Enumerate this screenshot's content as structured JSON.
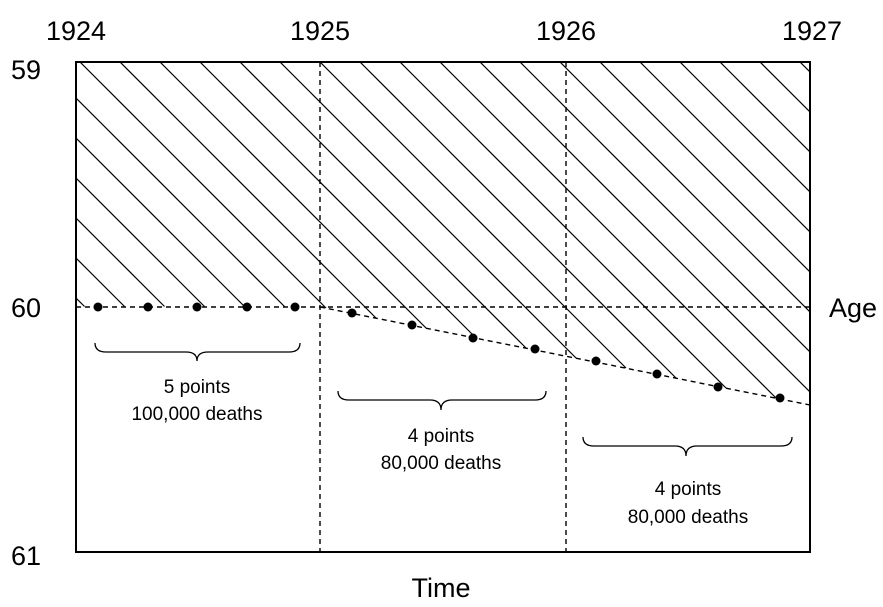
{
  "diagram": {
    "years": [
      "1924",
      "1925",
      "1926",
      "1927"
    ],
    "ages": {
      "top": "59",
      "middle": "60",
      "bottom": "61"
    },
    "age_axis_label": "Age",
    "time_axis_label": "Time",
    "groups": [
      {
        "points_label": "5 points",
        "deaths_label": "100,000 deaths"
      },
      {
        "points_label": "4 points",
        "deaths_label": "80,000 deaths"
      },
      {
        "points_label": "4 points",
        "deaths_label": "80,000 deaths"
      }
    ]
  }
}
